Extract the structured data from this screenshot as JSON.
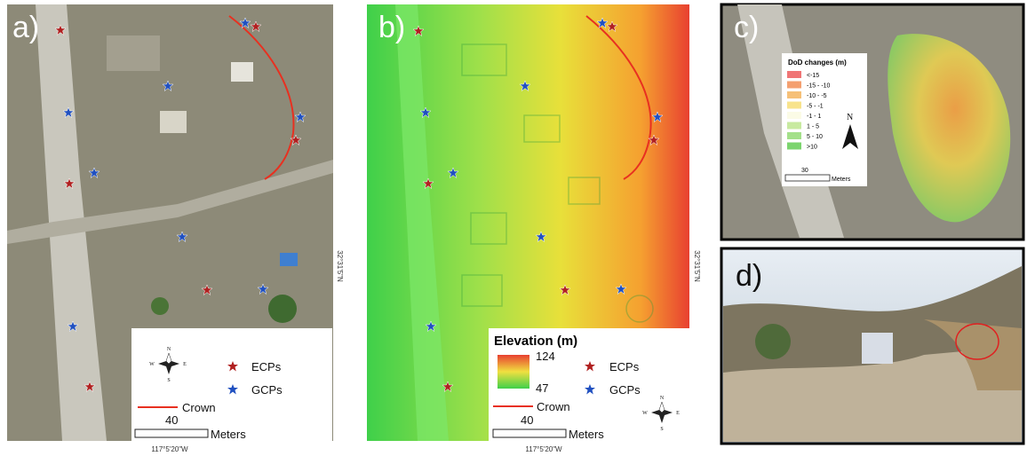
{
  "panels": [
    {
      "label": "a)",
      "legend": {
        "items": [
          "ECPs",
          "GCPs",
          "Crown"
        ],
        "scale_value": 40,
        "scale_unit": "Meters"
      },
      "longitude": "117°5'20\"W",
      "latitude": "32°31'5\"N"
    },
    {
      "label": "b)",
      "legend": {
        "title": "Elevation (m)",
        "max": 124,
        "min": 47,
        "items": [
          "ECPs",
          "GCPs",
          "Crown"
        ],
        "scale_value": 40,
        "scale_unit": "Meters"
      },
      "longitude": "117°5'20\"W",
      "latitude": "32°31'5\"N"
    },
    {
      "label": "c)",
      "legend": {
        "title": "DoD changes (m)",
        "classes": [
          {
            "label": "<-15",
            "color": "#f07575"
          },
          {
            "label": "-15 - -10",
            "color": "#f4a070"
          },
          {
            "label": "-10 - -5",
            "color": "#f6c078"
          },
          {
            "label": "-5 - -1",
            "color": "#f8e38c"
          },
          {
            "label": "-1 - 1",
            "color": "#fbfbe6"
          },
          {
            "label": "1 - 5",
            "color": "#c8eaa0"
          },
          {
            "label": "5 - 10",
            "color": "#a4e08a"
          },
          {
            "label": ">10",
            "color": "#7cd46e"
          }
        ],
        "north": "N",
        "scale_value": 30,
        "scale_unit": "Meters"
      }
    },
    {
      "label": "d)"
    }
  ],
  "compass": {
    "n": "N",
    "s": "S",
    "e": "E",
    "w": "W"
  }
}
